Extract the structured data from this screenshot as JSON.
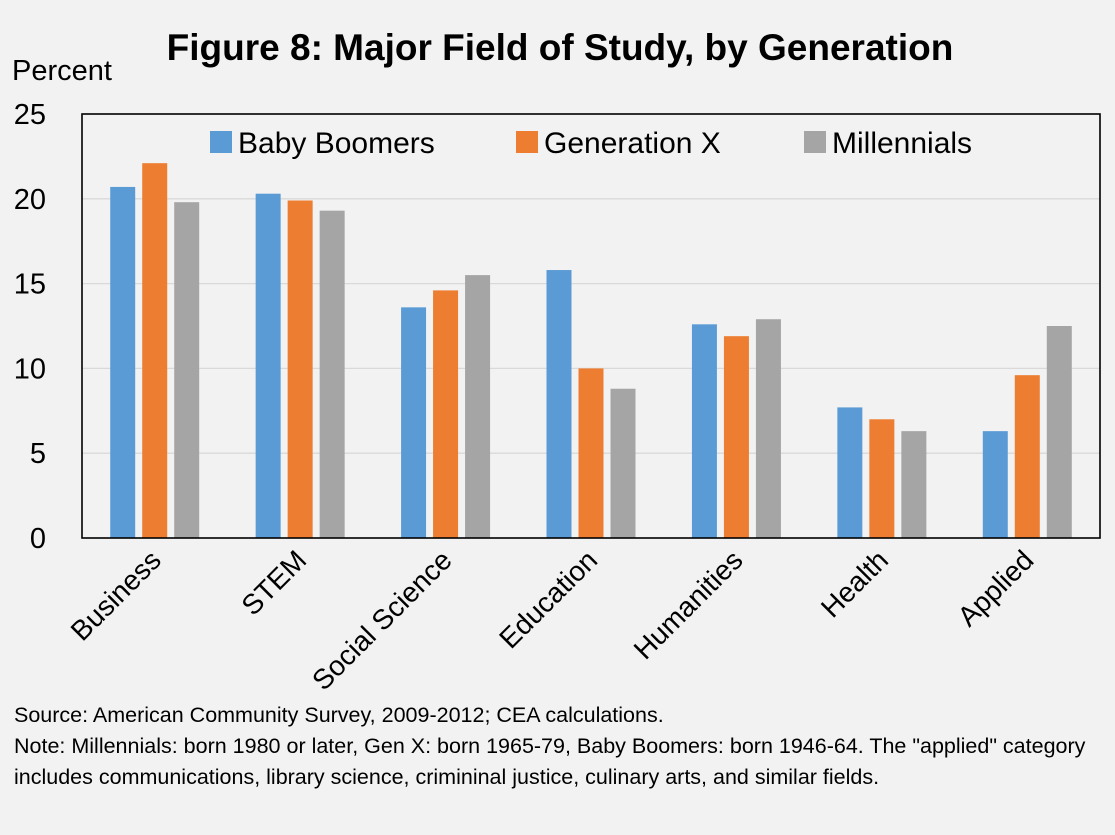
{
  "chart_data": {
    "type": "bar",
    "title": "Figure 8: Major Field of Study, by Generation",
    "ylabel": "Percent",
    "xlabel": "",
    "ylim": [
      0,
      25
    ],
    "yticks": [
      0,
      5,
      10,
      15,
      20,
      25
    ],
    "grid": true,
    "legend_position": "top",
    "categories": [
      "Business",
      "STEM",
      "Social Science",
      "Education",
      "Humanities",
      "Health",
      "Applied"
    ],
    "series": [
      {
        "name": "Baby Boomers",
        "color": "#5b9bd5",
        "values": [
          20.7,
          20.3,
          13.6,
          15.8,
          12.6,
          7.7,
          6.3
        ]
      },
      {
        "name": "Generation X",
        "color": "#ed7d31",
        "values": [
          22.1,
          19.9,
          14.6,
          10.0,
          11.9,
          7.0,
          9.6
        ]
      },
      {
        "name": "Millennials",
        "color": "#a5a5a5",
        "values": [
          19.8,
          19.3,
          15.5,
          8.8,
          12.9,
          6.3,
          12.5
        ]
      }
    ]
  },
  "footnotes": {
    "source": "Source: American Community Survey, 2009-2012; CEA calculations.",
    "note": "Note: Millennials: born 1980 or later, Gen X: born 1965-79, Baby Boomers: born 1946-64. The \"applied\" category includes communications, library science, crimininal justice, culinary arts, and similar fields."
  }
}
